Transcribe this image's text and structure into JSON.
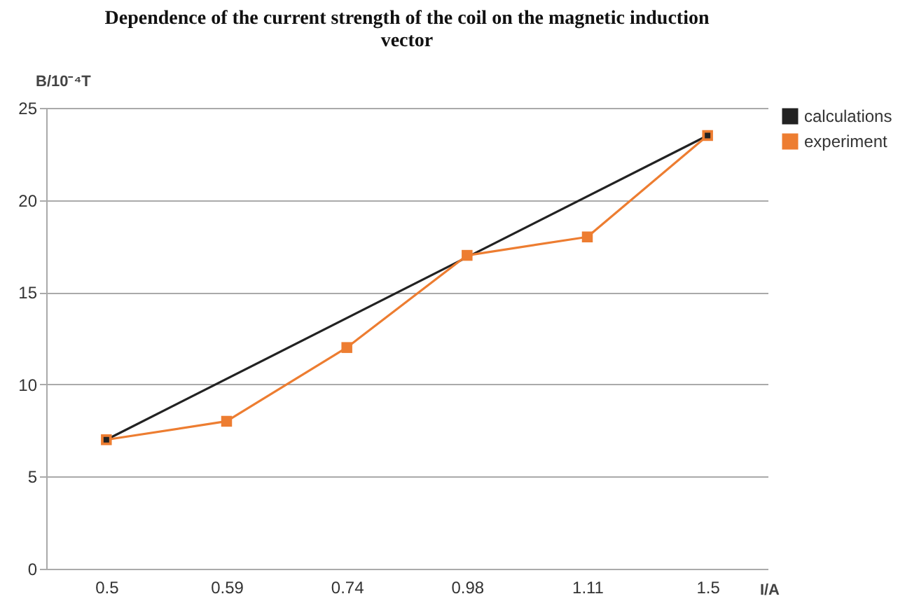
{
  "chart_data": {
    "type": "line",
    "title": "Dependence of the current strength of the coil on the magnetic induction vector",
    "xlabel": "I/A",
    "ylabel": "B/10⁻⁴T",
    "categories": [
      "0.5",
      "0.59",
      "0.74",
      "0.98",
      "1.11",
      "1.5"
    ],
    "series": [
      {
        "name": "calculations",
        "color": "#222222",
        "values": [
          7,
          null,
          null,
          null,
          null,
          23.5
        ]
      },
      {
        "name": "experiment",
        "color": "#ed7d31",
        "values": [
          7,
          8,
          12,
          17,
          18,
          23.5
        ]
      }
    ],
    "ylim": [
      0,
      25
    ],
    "yticks": [
      0,
      5,
      10,
      15,
      20,
      25
    ],
    "grid": "y",
    "legend": "right",
    "marker": "square"
  }
}
